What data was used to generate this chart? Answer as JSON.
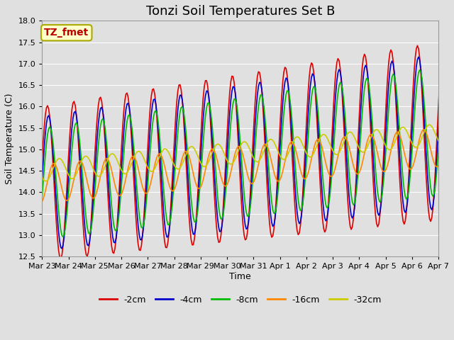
{
  "title": "Tonzi Soil Temperatures Set B",
  "xlabel": "Time",
  "ylabel": "Soil Temperature (C)",
  "annotation_label": "TZ_fmet",
  "annotation_bg": "#ffffcc",
  "annotation_border": "#aaaa00",
  "annotation_text_color": "#bb0000",
  "ylim": [
    12.5,
    18.0
  ],
  "yticks": [
    12.5,
    13.0,
    13.5,
    14.0,
    14.5,
    15.0,
    15.5,
    16.0,
    16.5,
    17.0,
    17.5,
    18.0
  ],
  "xtick_labels": [
    "Mar 23",
    "Mar 24",
    "Mar 25",
    "Mar 26",
    "Mar 27",
    "Mar 28",
    "Mar 29",
    "Mar 30",
    "Mar 31",
    "Apr 1",
    "Apr 2",
    "Apr 3",
    "Apr 4",
    "Apr 5",
    "Apr 6",
    "Apr 7"
  ],
  "series_colors": [
    "#dd0000",
    "#0000cc",
    "#00bb00",
    "#ff8800",
    "#cccc00"
  ],
  "series_labels": [
    "-2cm",
    "-4cm",
    "-8cm",
    "-16cm",
    "-32cm"
  ],
  "n_days": 16,
  "pts_per_day": 24,
  "background_color": "#e0e0e0",
  "plot_bg_color": "#e0e0e0",
  "grid_color": "#ffffff",
  "title_fontsize": 13,
  "axis_label_fontsize": 9,
  "tick_fontsize": 8
}
